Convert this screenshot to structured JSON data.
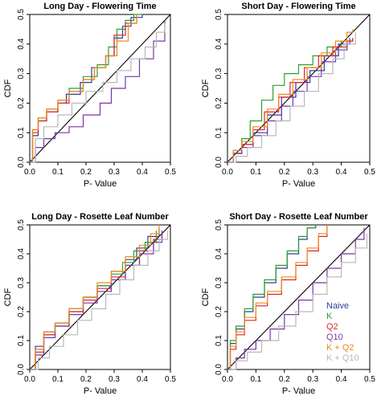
{
  "colors": {
    "Naive": "#2e3e9c",
    "K": "#2ea02c",
    "Q2": "#e0262c",
    "Q10": "#7b35a8",
    "K + Q2": "#f08a1c",
    "K + Q10": "#b8b8b8",
    "diagonal": "#000000"
  },
  "chart_data": [
    {
      "type": "line",
      "title": "Long Day -  Flowering Time",
      "xlabel": "P- Value",
      "ylabel": "CDF",
      "xlim": [
        0,
        0.5
      ],
      "ylim": [
        0,
        0.5
      ],
      "xticks": [
        "0.0",
        "0.1",
        "0.2",
        "0.3",
        "0.4",
        "0.5"
      ],
      "yticks": [
        "0.0",
        "0.1",
        "0.2",
        "0.3",
        "0.4",
        "0.5"
      ],
      "diagonal": true,
      "series": [
        {
          "name": "Naive",
          "x": [
            0,
            0.01,
            0.03,
            0.06,
            0.1,
            0.13,
            0.18,
            0.22,
            0.27,
            0.3,
            0.33,
            0.36,
            0.4
          ],
          "y": [
            0,
            0.09,
            0.14,
            0.17,
            0.2,
            0.23,
            0.27,
            0.32,
            0.36,
            0.42,
            0.46,
            0.49,
            0.5
          ]
        },
        {
          "name": "K",
          "x": [
            0,
            0.01,
            0.03,
            0.06,
            0.1,
            0.14,
            0.19,
            0.24,
            0.28,
            0.31,
            0.34,
            0.37,
            0.4
          ],
          "y": [
            0,
            0.11,
            0.15,
            0.18,
            0.21,
            0.25,
            0.29,
            0.33,
            0.39,
            0.45,
            0.48,
            0.5,
            0.5
          ]
        },
        {
          "name": "Q2",
          "x": [
            0,
            0.01,
            0.03,
            0.06,
            0.1,
            0.14,
            0.19,
            0.23,
            0.27,
            0.3,
            0.34,
            0.38
          ],
          "y": [
            0,
            0.1,
            0.14,
            0.17,
            0.2,
            0.24,
            0.28,
            0.32,
            0.36,
            0.43,
            0.47,
            0.5
          ]
        },
        {
          "name": "Q10",
          "x": [
            0,
            0.02,
            0.05,
            0.09,
            0.14,
            0.19,
            0.25,
            0.29,
            0.34,
            0.39,
            0.44,
            0.48
          ],
          "y": [
            0,
            0.05,
            0.08,
            0.1,
            0.12,
            0.16,
            0.2,
            0.25,
            0.29,
            0.35,
            0.41,
            0.48
          ]
        },
        {
          "name": "K + Q2",
          "x": [
            0,
            0.01,
            0.03,
            0.06,
            0.1,
            0.14,
            0.19,
            0.23,
            0.27,
            0.31,
            0.35,
            0.38
          ],
          "y": [
            0,
            0.11,
            0.15,
            0.18,
            0.21,
            0.24,
            0.28,
            0.32,
            0.36,
            0.41,
            0.47,
            0.5
          ]
        },
        {
          "name": "K + Q10",
          "x": [
            0,
            0.02,
            0.05,
            0.1,
            0.15,
            0.2,
            0.26,
            0.31,
            0.36,
            0.41,
            0.45,
            0.48
          ],
          "y": [
            0,
            0.08,
            0.12,
            0.16,
            0.2,
            0.24,
            0.27,
            0.31,
            0.35,
            0.39,
            0.44,
            0.47
          ]
        }
      ]
    },
    {
      "type": "line",
      "title": "Short Day -  Flowering Time",
      "xlabel": "P- Value",
      "ylabel": "CDF",
      "xlim": [
        0,
        0.5
      ],
      "ylim": [
        0,
        0.5
      ],
      "xticks": [
        "0.0",
        "0.1",
        "0.2",
        "0.3",
        "0.4",
        "0.5"
      ],
      "yticks": [
        "0.0",
        "0.1",
        "0.2",
        "0.3",
        "0.4",
        "0.5"
      ],
      "diagonal": true,
      "series": [
        {
          "name": "Naive",
          "x": [
            0,
            0.02,
            0.05,
            0.09,
            0.14,
            0.19,
            0.24,
            0.29,
            0.34,
            0.39,
            0.43
          ],
          "y": [
            0,
            0.03,
            0.06,
            0.1,
            0.16,
            0.22,
            0.27,
            0.31,
            0.36,
            0.4,
            0.42
          ]
        },
        {
          "name": "K",
          "x": [
            0,
            0.02,
            0.05,
            0.08,
            0.12,
            0.16,
            0.2,
            0.25,
            0.3,
            0.35,
            0.4,
            0.44
          ],
          "y": [
            0,
            0.04,
            0.08,
            0.14,
            0.21,
            0.26,
            0.3,
            0.33,
            0.36,
            0.39,
            0.41,
            0.42
          ]
        },
        {
          "name": "Q2",
          "x": [
            0,
            0.02,
            0.05,
            0.09,
            0.13,
            0.18,
            0.22,
            0.27,
            0.32,
            0.37,
            0.42,
            0.44
          ],
          "y": [
            0,
            0.03,
            0.06,
            0.11,
            0.17,
            0.22,
            0.27,
            0.32,
            0.36,
            0.39,
            0.41,
            0.42
          ]
        },
        {
          "name": "Q10",
          "x": [
            0,
            0.02,
            0.05,
            0.09,
            0.14,
            0.19,
            0.23,
            0.28,
            0.33,
            0.38,
            0.42
          ],
          "y": [
            0,
            0.03,
            0.05,
            0.09,
            0.14,
            0.19,
            0.24,
            0.29,
            0.34,
            0.38,
            0.4
          ]
        },
        {
          "name": "K + Q2",
          "x": [
            0,
            0.02,
            0.05,
            0.09,
            0.14,
            0.18,
            0.23,
            0.28,
            0.33,
            0.38,
            0.42,
            0.44
          ],
          "y": [
            0,
            0.04,
            0.07,
            0.12,
            0.18,
            0.23,
            0.28,
            0.32,
            0.37,
            0.41,
            0.44,
            0.45
          ]
        },
        {
          "name": "K + Q10",
          "x": [
            0,
            0.03,
            0.07,
            0.12,
            0.17,
            0.22,
            0.27,
            0.32,
            0.37,
            0.41,
            0.45
          ],
          "y": [
            0,
            0.02,
            0.05,
            0.09,
            0.14,
            0.19,
            0.24,
            0.3,
            0.35,
            0.4,
            0.44
          ]
        }
      ]
    },
    {
      "type": "line",
      "title": "Long Day -  Rosette Leaf Number",
      "xlabel": "P- Value",
      "ylabel": "CDF",
      "xlim": [
        0,
        0.5
      ],
      "ylim": [
        0,
        0.5
      ],
      "xticks": [
        "0.0",
        "0.1",
        "0.2",
        "0.3",
        "0.4",
        "0.5"
      ],
      "yticks": [
        "0.0",
        "0.1",
        "0.2",
        "0.3",
        "0.4",
        "0.5"
      ],
      "diagonal": true,
      "series": [
        {
          "name": "Naive",
          "x": [
            0,
            0.02,
            0.05,
            0.09,
            0.14,
            0.19,
            0.24,
            0.29,
            0.34,
            0.38,
            0.42,
            0.46
          ],
          "y": [
            0,
            0.08,
            0.13,
            0.16,
            0.21,
            0.25,
            0.29,
            0.34,
            0.38,
            0.42,
            0.46,
            0.49
          ]
        },
        {
          "name": "K",
          "x": [
            0,
            0.02,
            0.05,
            0.09,
            0.14,
            0.19,
            0.24,
            0.29,
            0.33,
            0.37,
            0.41,
            0.45
          ],
          "y": [
            0,
            0.07,
            0.12,
            0.15,
            0.2,
            0.25,
            0.29,
            0.33,
            0.37,
            0.41,
            0.44,
            0.48
          ]
        },
        {
          "name": "Q2",
          "x": [
            0,
            0.02,
            0.05,
            0.09,
            0.14,
            0.19,
            0.24,
            0.29,
            0.34,
            0.39,
            0.44,
            0.47
          ],
          "y": [
            0,
            0.06,
            0.12,
            0.16,
            0.2,
            0.24,
            0.28,
            0.32,
            0.36,
            0.41,
            0.45,
            0.48
          ]
        },
        {
          "name": "Q10",
          "x": [
            0,
            0.02,
            0.05,
            0.09,
            0.14,
            0.19,
            0.24,
            0.29,
            0.34,
            0.39,
            0.44,
            0.47
          ],
          "y": [
            0,
            0.05,
            0.11,
            0.15,
            0.19,
            0.23,
            0.27,
            0.31,
            0.36,
            0.4,
            0.44,
            0.48
          ]
        },
        {
          "name": "K + Q2",
          "x": [
            0,
            0.02,
            0.05,
            0.09,
            0.14,
            0.19,
            0.24,
            0.29,
            0.34,
            0.39,
            0.43,
            0.46
          ],
          "y": [
            0,
            0.07,
            0.13,
            0.16,
            0.21,
            0.25,
            0.3,
            0.34,
            0.39,
            0.43,
            0.47,
            0.5
          ]
        },
        {
          "name": "K + Q10",
          "x": [
            0,
            0.03,
            0.07,
            0.12,
            0.17,
            0.22,
            0.27,
            0.32,
            0.37,
            0.42,
            0.46,
            0.49
          ],
          "y": [
            0,
            0.04,
            0.08,
            0.12,
            0.17,
            0.21,
            0.26,
            0.31,
            0.36,
            0.41,
            0.45,
            0.48
          ]
        }
      ]
    },
    {
      "type": "line",
      "title": "Short Day -  Rosette Leaf Number",
      "xlabel": "P- Value",
      "ylabel": "CDF",
      "xlim": [
        0,
        0.5
      ],
      "ylim": [
        0,
        0.5
      ],
      "xticks": [
        "0.0",
        "0.1",
        "0.2",
        "0.3",
        "0.4",
        "0.5"
      ],
      "yticks": [
        "0.0",
        "0.1",
        "0.2",
        "0.3",
        "0.4",
        "0.5"
      ],
      "diagonal": true,
      "legend": {
        "position": "bottom-right",
        "entries": [
          "Naive",
          "K",
          "Q2",
          "Q10",
          "K + Q2",
          "K + Q10"
        ]
      },
      "series": [
        {
          "name": "Naive",
          "x": [
            0,
            0.01,
            0.03,
            0.06,
            0.09,
            0.13,
            0.17,
            0.21,
            0.25,
            0.28,
            0.31
          ],
          "y": [
            0,
            0.09,
            0.14,
            0.2,
            0.25,
            0.3,
            0.35,
            0.4,
            0.45,
            0.49,
            0.5
          ]
        },
        {
          "name": "K",
          "x": [
            0,
            0.01,
            0.03,
            0.06,
            0.09,
            0.13,
            0.17,
            0.21,
            0.25,
            0.28,
            0.31
          ],
          "y": [
            0,
            0.1,
            0.15,
            0.21,
            0.26,
            0.31,
            0.36,
            0.41,
            0.46,
            0.49,
            0.5
          ]
        },
        {
          "name": "Q2",
          "x": [
            0,
            0.01,
            0.03,
            0.06,
            0.1,
            0.14,
            0.19,
            0.24,
            0.28,
            0.32,
            0.35
          ],
          "y": [
            0,
            0.07,
            0.12,
            0.17,
            0.22,
            0.26,
            0.31,
            0.36,
            0.41,
            0.46,
            0.5
          ]
        },
        {
          "name": "Q10",
          "x": [
            0,
            0.03,
            0.06,
            0.1,
            0.15,
            0.2,
            0.25,
            0.3,
            0.35,
            0.4,
            0.45,
            0.48
          ],
          "y": [
            0,
            0.04,
            0.07,
            0.1,
            0.14,
            0.19,
            0.24,
            0.3,
            0.35,
            0.4,
            0.45,
            0.49
          ]
        },
        {
          "name": "K + Q2",
          "x": [
            0,
            0.01,
            0.03,
            0.06,
            0.1,
            0.14,
            0.19,
            0.24,
            0.28,
            0.32,
            0.35
          ],
          "y": [
            0,
            0.08,
            0.13,
            0.18,
            0.23,
            0.27,
            0.32,
            0.37,
            0.42,
            0.47,
            0.5
          ]
        },
        {
          "name": "K + Q10",
          "x": [
            0,
            0.03,
            0.07,
            0.12,
            0.18,
            0.24,
            0.3,
            0.35,
            0.4,
            0.45,
            0.49
          ],
          "y": [
            0,
            0.03,
            0.06,
            0.1,
            0.15,
            0.2,
            0.26,
            0.32,
            0.37,
            0.42,
            0.47
          ]
        }
      ]
    }
  ]
}
